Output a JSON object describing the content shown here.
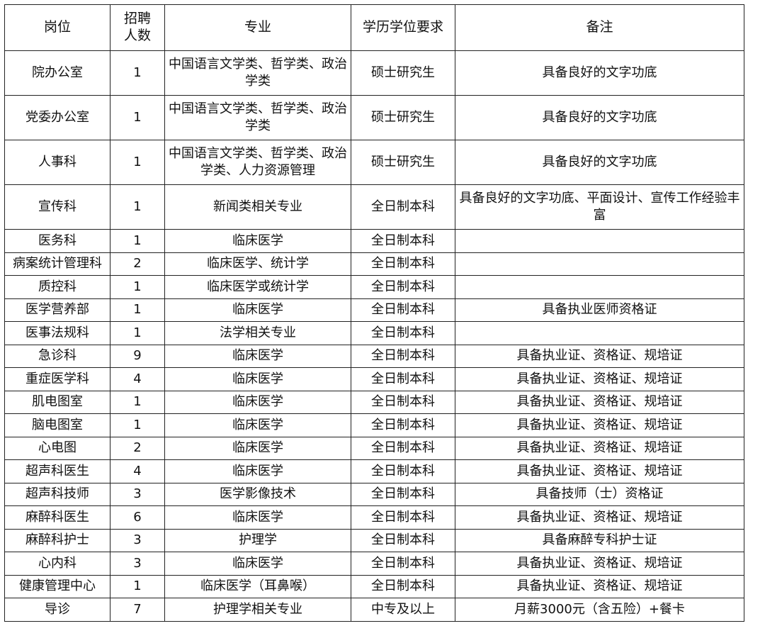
{
  "table": {
    "headers": [
      "岗位",
      "招聘人数",
      "专业",
      "学历学位要求",
      "备注"
    ],
    "rows": [
      {
        "post": "院办公室",
        "count": "1",
        "major": "中国语言文学类、哲学类、政治学类",
        "degree": "硕士研究生",
        "note": "具备良好的文字功底"
      },
      {
        "post": "党委办公室",
        "count": "1",
        "major": "中国语言文学类、哲学类、政治学类",
        "degree": "硕士研究生",
        "note": "具备良好的文字功底"
      },
      {
        "post": "人事科",
        "count": "1",
        "major": "中国语言文学类、哲学类、政治学类、人力资源管理",
        "degree": "硕士研究生",
        "note": "具备良好的文字功底"
      },
      {
        "post": "宣传科",
        "count": "1",
        "major": "新闻类相关专业",
        "degree": "全日制本科",
        "note": "具备良好的文字功底、平面设计、宣传工作经验丰富"
      },
      {
        "post": "医务科",
        "count": "1",
        "major": "临床医学",
        "degree": "全日制本科",
        "note": ""
      },
      {
        "post": "病案统计管理科",
        "count": "2",
        "major": "临床医学、统计学",
        "degree": "全日制本科",
        "note": ""
      },
      {
        "post": "质控科",
        "count": "1",
        "major": "临床医学或统计学",
        "degree": "全日制本科",
        "note": ""
      },
      {
        "post": "医学营养部",
        "count": "1",
        "major": "临床医学",
        "degree": "全日制本科",
        "note": "具备执业医师资格证"
      },
      {
        "post": "医事法规科",
        "count": "1",
        "major": "法学相关专业",
        "degree": "全日制本科",
        "note": ""
      },
      {
        "post": "急诊科",
        "count": "9",
        "major": "临床医学",
        "degree": "全日制本科",
        "note": "具备执业证、资格证、规培证"
      },
      {
        "post": "重症医学科",
        "count": "4",
        "major": "临床医学",
        "degree": "全日制本科",
        "note": "具备执业证、资格证、规培证"
      },
      {
        "post": "肌电图室",
        "count": "1",
        "major": "临床医学",
        "degree": "全日制本科",
        "note": "具备执业证、资格证、规培证"
      },
      {
        "post": "脑电图室",
        "count": "1",
        "major": "临床医学",
        "degree": "全日制本科",
        "note": "具备执业证、资格证、规培证"
      },
      {
        "post": "心电图",
        "count": "2",
        "major": "临床医学",
        "degree": "全日制本科",
        "note": "具备执业证、资格证、规培证"
      },
      {
        "post": "超声科医生",
        "count": "4",
        "major": "临床医学",
        "degree": "全日制本科",
        "note": "具备执业证、资格证、规培证"
      },
      {
        "post": "超声科技师",
        "count": "3",
        "major": "医学影像技术",
        "degree": "全日制本科",
        "note": "具备技师（士）资格证"
      },
      {
        "post": "麻醉科医生",
        "count": "6",
        "major": "临床医学",
        "degree": "全日制本科",
        "note": "具备执业证、资格证、规培证"
      },
      {
        "post": "麻醉科护士",
        "count": "3",
        "major": "护理学",
        "degree": "全日制本科",
        "note": "具备麻醉专科护士证"
      },
      {
        "post": "心内科",
        "count": "3",
        "major": "临床医学",
        "degree": "全日制本科",
        "note": "具备执业证、资格证、规培证"
      },
      {
        "post": "健康管理中心",
        "count": "1",
        "major": "临床医学（耳鼻喉）",
        "degree": "全日制本科",
        "note": "具备执业证、资格证、规培证"
      },
      {
        "post": "导诊",
        "count": "7",
        "major": "护理学相关专业",
        "degree": "中专及以上",
        "note": "月薪3000元（含五险）+餐卡"
      }
    ]
  }
}
